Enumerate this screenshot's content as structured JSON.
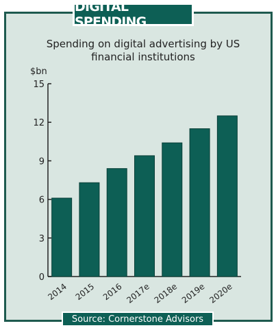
{
  "header": {
    "badge_title": "DIGITAL SPENDING"
  },
  "chart_data": {
    "type": "bar",
    "subtitle": "Spending on digital advertising by US financial institutions",
    "unit_label": "$bn",
    "categories": [
      "2014",
      "2015",
      "2016",
      "2017e",
      "2018e",
      "2019e",
      "2020e"
    ],
    "values": [
      6.1,
      7.3,
      8.4,
      9.4,
      10.4,
      11.5,
      12.5
    ],
    "yticks": [
      0,
      3,
      6,
      9,
      12,
      15
    ],
    "ylim": [
      0,
      15
    ],
    "grid": false,
    "legend": "none",
    "colors": {
      "bar": "#0d5f55",
      "background": "#d9e6e1",
      "axis": "#222222"
    }
  },
  "footer": {
    "source": "Source: Cornerstone Advisors"
  }
}
